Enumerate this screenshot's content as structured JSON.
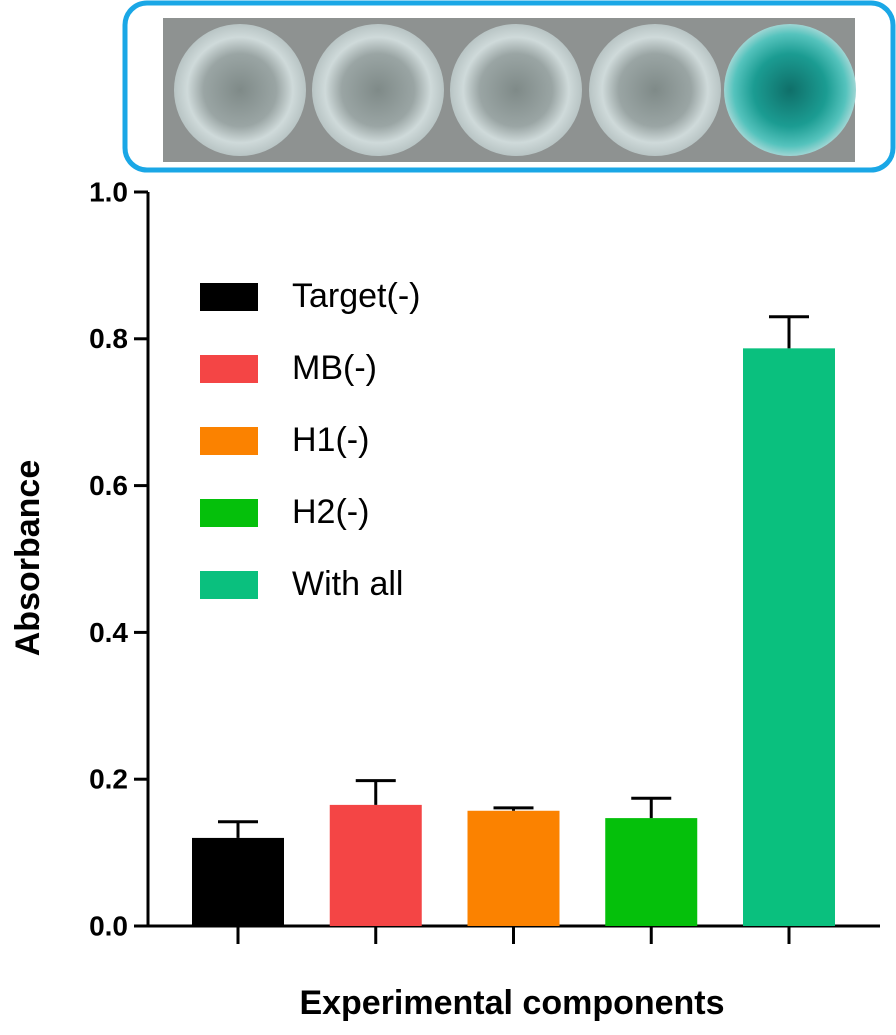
{
  "chart_data": {
    "type": "bar",
    "x_label": "Experimental components",
    "y_label": "Absorbance",
    "categories": [
      null
    ],
    "series": [
      {
        "name": "Target(-)",
        "color": "#000000",
        "values": [
          0.12
        ],
        "errors": [
          0.022
        ]
      },
      {
        "name": "MB(-)",
        "color": "#f44545",
        "values": [
          0.165
        ],
        "errors": [
          0.033
        ]
      },
      {
        "name": "H1(-)",
        "color": "#fb8200",
        "values": [
          0.157
        ],
        "errors": [
          0.004
        ]
      },
      {
        "name": "H2(-)",
        "color": "#05c00b",
        "values": [
          0.147
        ],
        "errors": [
          0.027
        ]
      },
      {
        "name": "With all",
        "color": "#0ac07e",
        "values": [
          0.787
        ],
        "errors": [
          0.043
        ]
      }
    ],
    "ylim": [
      0,
      1
    ],
    "yticks": [
      {
        "value": 0,
        "label": "0.0"
      },
      {
        "value": 0.2,
        "label": "0.2"
      },
      {
        "value": 0.4,
        "label": "0.4"
      },
      {
        "value": 0.6,
        "label": "0.6"
      },
      {
        "value": 0.8,
        "label": "0.8"
      },
      {
        "value": 1,
        "label": "1.0"
      }
    ],
    "grid": false,
    "legend": "upper left"
  }
}
